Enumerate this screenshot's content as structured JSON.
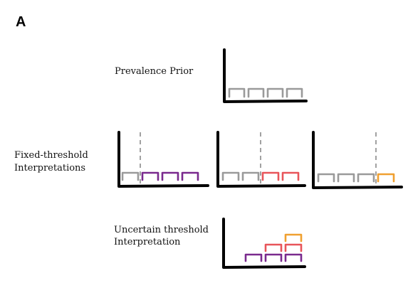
{
  "panel_letter": "A",
  "labels": {
    "prior": "Prevalence Prior",
    "fixed_line1": "Fixed-threshold",
    "fixed_line2": "Interpretations",
    "uncertain_line1": "Uncertain threshold",
    "uncertain_line2": "Interpretation"
  },
  "colors": {
    "axis": "#000000",
    "gray": "#9a9a9a",
    "dashed": "#8a8a8a",
    "purple": "#7a2a8e",
    "red": "#e8555a",
    "orange": "#f0a030"
  },
  "diagram": {
    "prior_bins": [
      "gray",
      "gray",
      "gray",
      "gray"
    ],
    "fixed_threshold_panels": [
      {
        "threshold_after_bin": 1,
        "bins": [
          "gray",
          "purple",
          "purple",
          "purple"
        ]
      },
      {
        "threshold_after_bin": 2,
        "bins": [
          "gray",
          "gray",
          "red",
          "red"
        ]
      },
      {
        "threshold_after_bin": 3,
        "bins": [
          "gray",
          "gray",
          "gray",
          "orange"
        ]
      }
    ],
    "uncertain_stacks": [
      [
        "purple"
      ],
      [
        "purple",
        "red"
      ],
      [
        "purple",
        "red",
        "orange"
      ]
    ]
  }
}
